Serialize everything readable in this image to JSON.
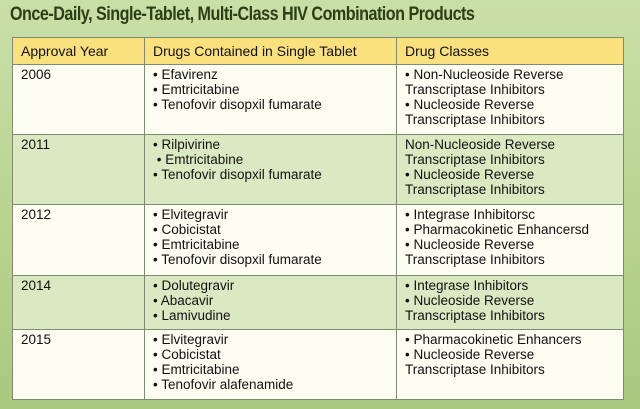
{
  "title": "Once-Daily, Single-Tablet, Multi-Class HIV Combination Products",
  "columns": [
    "Approval Year",
    "Drugs Contained in Single Tablet",
    "Drug Classes"
  ],
  "rows": [
    {
      "year": "2006",
      "drugs": [
        "• Efavirenz",
        "• Emtricitabine",
        "• Tenofovir disopxil fumarate"
      ],
      "classes": [
        "• Non-Nucleoside Reverse",
        "Transcriptase Inhibitors",
        "• Nucleoside Reverse",
        "Transcriptase Inhibitors"
      ]
    },
    {
      "year": "2011",
      "drugs": [
        "• Rilpivirine",
        " • Emtricitabine",
        "• Tenofovir disopxil fumarate"
      ],
      "classes": [
        "Non-Nucleoside Reverse",
        "Transcriptase Inhibitors",
        "• Nucleoside Reverse",
        "Transcriptase Inhibitors"
      ]
    },
    {
      "year": "2012",
      "drugs": [
        "• Elvitegravir",
        "• Cobicistat",
        "• Emtricitabine",
        "• Tenofovir disopxil fumarate"
      ],
      "classes": [
        "• Integrase Inhibitorsc",
        "• Pharmacokinetic Enhancersd",
        "• Nucleoside Reverse",
        "Transcriptase Inhibitors"
      ]
    },
    {
      "year": "2014",
      "drugs": [
        "• Dolutegravir",
        "• Abacavir",
        "• Lamivudine"
      ],
      "classes": [
        "• Integrase Inhibitors",
        "• Nucleoside Reverse",
        "Transcriptase Inhibitors"
      ]
    },
    {
      "year": "2015",
      "drugs": [
        "• Elvitegravir",
        "• Cobicistat",
        "• Emtricitabine",
        "• Tenofovir alafenamide"
      ],
      "classes": [
        "• Pharmacokinetic Enhancers",
        "• Nucleoside Reverse",
        "Transcriptase Inhibitors"
      ]
    }
  ]
}
